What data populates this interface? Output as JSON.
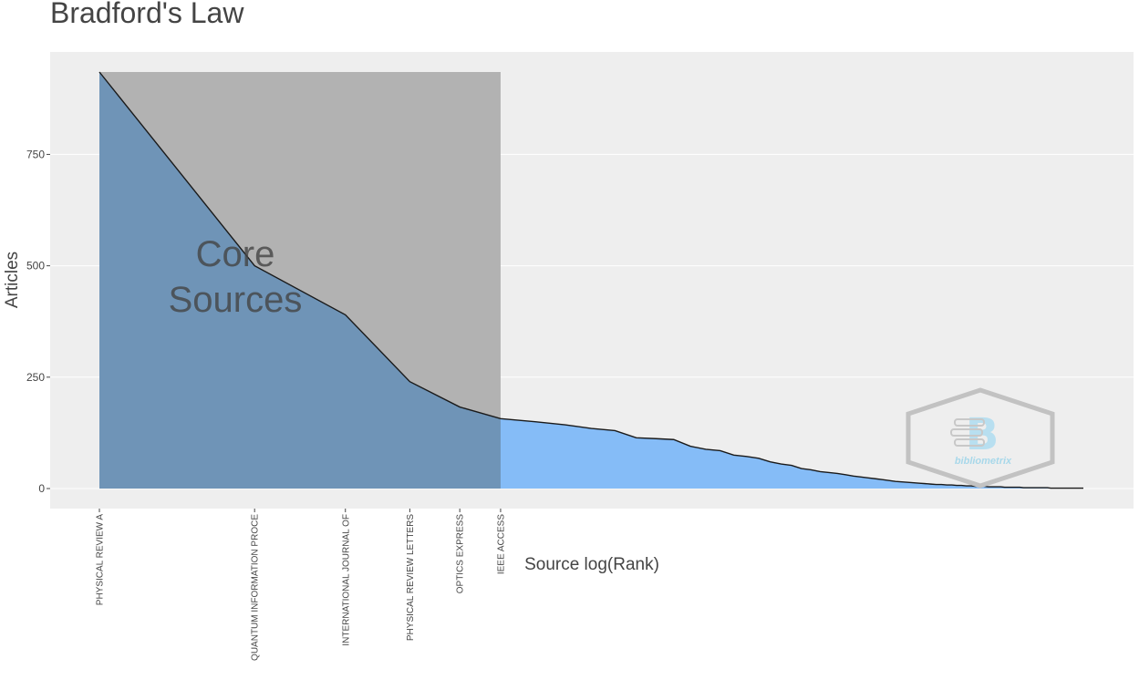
{
  "chart_data": {
    "type": "area",
    "title": "Bradford's Law",
    "xlabel": "Source log(Rank)",
    "ylabel": "Articles",
    "ylim": [
      -45,
      980
    ],
    "y_ticks": [
      0,
      250,
      500,
      750
    ],
    "x_scale": "log",
    "core_label": [
      "Core",
      "Sources"
    ],
    "core_rank_end": 6,
    "core_sources": [
      {
        "rank": 1,
        "label": "PHYSICAL REVIEW A",
        "articles": 935
      },
      {
        "rank": 2,
        "label": "QUANTUM INFORMATION PROCE",
        "articles": 500
      },
      {
        "rank": 3,
        "label": "INTERNATIONAL JOURNAL OF",
        "articles": 390
      },
      {
        "rank": 4,
        "label": "PHYSICAL REVIEW LETTERS",
        "articles": 240
      },
      {
        "rank": 5,
        "label": "OPTICS EXPRESS",
        "articles": 183
      },
      {
        "rank": 6,
        "label": "IEEE ACCESS",
        "articles": 157
      }
    ],
    "tail_articles": [
      150,
      143,
      135,
      130,
      114,
      112,
      110,
      95,
      88,
      85,
      75,
      72,
      68,
      60,
      55,
      52,
      45,
      42,
      38,
      36,
      34,
      31,
      28,
      26,
      24,
      22,
      20,
      18,
      16,
      15,
      14,
      13,
      12,
      11,
      10,
      9,
      9,
      8,
      8,
      7,
      7,
      6,
      6,
      5,
      5,
      5,
      4,
      4,
      4,
      4,
      3,
      3,
      3,
      3,
      3,
      2,
      2,
      2,
      2,
      2,
      2,
      2,
      2,
      1,
      1,
      1,
      1,
      1,
      1,
      1,
      1,
      1,
      1,
      1,
      1
    ],
    "colors": {
      "panel_background": "#eeeeee",
      "grid": "#ffffff",
      "core_area": "#b2b2b2",
      "area_fill": "#85bcf7",
      "core_overlap": "#6f94b7",
      "line": "#1a1a1a"
    },
    "watermark": "bibliometrix"
  }
}
